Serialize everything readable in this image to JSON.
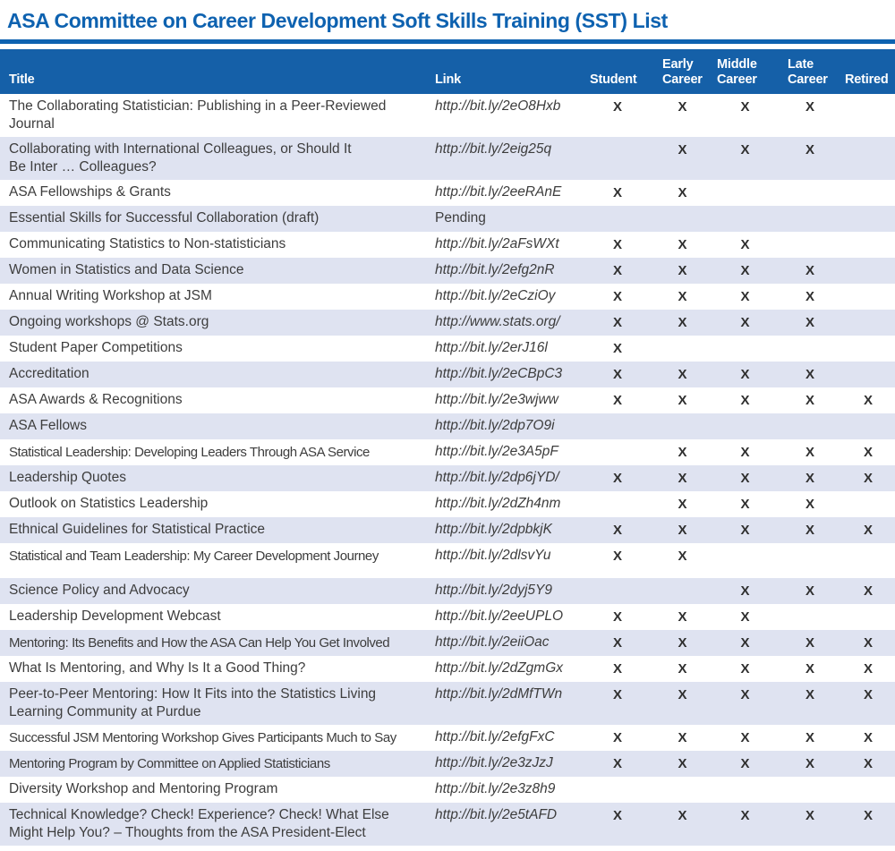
{
  "page_title": "ASA Committee on Career Development Soft Skills Training (SST) List",
  "mark_glyph": "X",
  "colors": {
    "accent_blue": "#0E62B0",
    "header_bar": "#1560A8",
    "header_text": "#FFFFFF",
    "stripe": "#DFE3F1",
    "text": "#3D3D3D"
  },
  "columns": {
    "title": "Title",
    "link": "Link",
    "student": "Student",
    "early_career": "Early Career",
    "middle_career": "Middle Career",
    "late_career": "Late Career",
    "retired": "Retired"
  },
  "rows": [
    {
      "title": "The Collaborating Statistician: Publishing in a Peer-Reviewed\nJournal",
      "link": "http://bit.ly/2eO8Hxb",
      "marks": {
        "student": "X",
        "early_career": "X",
        "middle_career": "X",
        "late_career": "X",
        "retired": ""
      }
    },
    {
      "title": "Collaborating with International Colleagues, or Should It\nBe Inter … Colleagues?",
      "link": "http://bit.ly/2eig25q",
      "marks": {
        "student": "",
        "early_career": "X",
        "middle_career": "X",
        "late_career": "X",
        "retired": ""
      }
    },
    {
      "title": "ASA Fellowships & Grants",
      "link": "http://bit.ly/2eeRAnE",
      "marks": {
        "student": "X",
        "early_career": "X",
        "middle_career": "",
        "late_career": "",
        "retired": ""
      }
    },
    {
      "title": "Essential Skills for Successful Collaboration (draft)",
      "link": "Pending",
      "marks": {
        "student": "",
        "early_career": "",
        "middle_career": "",
        "late_career": "",
        "retired": ""
      }
    },
    {
      "title": "Communicating Statistics to Non-statisticians",
      "link": "http://bit.ly/2aFsWXt",
      "marks": {
        "student": "X",
        "early_career": "X",
        "middle_career": "X",
        "late_career": "",
        "retired": ""
      }
    },
    {
      "title": "Women in Statistics and Data Science",
      "link": "http://bit.ly/2efg2nR",
      "marks": {
        "student": "X",
        "early_career": "X",
        "middle_career": "X",
        "late_career": "X",
        "retired": ""
      }
    },
    {
      "title": "Annual Writing Workshop at JSM",
      "link": "http://bit.ly/2eCziOy",
      "marks": {
        "student": "X",
        "early_career": "X",
        "middle_career": "X",
        "late_career": "X",
        "retired": ""
      }
    },
    {
      "title": "Ongoing workshops @ Stats.org",
      "link": "http://www.stats.org/",
      "marks": {
        "student": "X",
        "early_career": "X",
        "middle_career": "X",
        "late_career": "X",
        "retired": ""
      }
    },
    {
      "title": "Student Paper Competitions",
      "link": "http://bit.ly/2erJ16l",
      "marks": {
        "student": "X",
        "early_career": "",
        "middle_career": "",
        "late_career": "",
        "retired": ""
      }
    },
    {
      "title": "Accreditation",
      "link": "http://bit.ly/2eCBpC3",
      "marks": {
        "student": "X",
        "early_career": "X",
        "middle_career": "X",
        "late_career": "X",
        "retired": ""
      }
    },
    {
      "title": "ASA Awards & Recognitions",
      "link": "http://bit.ly/2e3wjww",
      "marks": {
        "student": "X",
        "early_career": "X",
        "middle_career": "X",
        "late_career": "X",
        "retired": "X"
      }
    },
    {
      "title": "ASA Fellows",
      "link": "http://bit.ly/2dp7O9i",
      "marks": {
        "student": "",
        "early_career": "",
        "middle_career": "",
        "late_career": "",
        "retired": ""
      }
    },
    {
      "title": "Statistical Leadership: Developing Leaders Through ASA Service",
      "link": "http://bit.ly/2e3A5pF",
      "marks": {
        "student": "",
        "early_career": "X",
        "middle_career": "X",
        "late_career": "X",
        "retired": "X"
      }
    },
    {
      "title": "Leadership Quotes",
      "link": "http://bit.ly/2dp6jYD/",
      "marks": {
        "student": "X",
        "early_career": "X",
        "middle_career": "X",
        "late_career": "X",
        "retired": "X"
      }
    },
    {
      "title": "Outlook on Statistics Leadership",
      "link": "http://bit.ly/2dZh4nm",
      "marks": {
        "student": "",
        "early_career": "X",
        "middle_career": "X",
        "late_career": "X",
        "retired": ""
      }
    },
    {
      "title": "Ethnical Guidelines for Statistical Practice",
      "link": "http://bit.ly/2dpbkjK",
      "marks": {
        "student": "X",
        "early_career": "X",
        "middle_career": "X",
        "late_career": "X",
        "retired": "X"
      }
    },
    {
      "title": "Statistical and Team Leadership: My Career Development Journey",
      "link": "http://bit.ly/2dlsvYu",
      "marks": {
        "student": "X",
        "early_career": "X",
        "middle_career": "",
        "late_career": "",
        "retired": ""
      }
    },
    {
      "title": "Science Policy and Advocacy",
      "link": "http://bit.ly/2dyj5Y9",
      "marks": {
        "student": "",
        "early_career": "",
        "middle_career": "X",
        "late_career": "X",
        "retired": "X"
      }
    },
    {
      "title": "Leadership Development Webcast",
      "link": "http://bit.ly/2eeUPLO",
      "marks": {
        "student": "X",
        "early_career": "X",
        "middle_career": "X",
        "late_career": "",
        "retired": ""
      }
    },
    {
      "title": "Mentoring: Its Benefits and How the ASA Can Help You Get Involved",
      "link": "http://bit.ly/2eiiOac",
      "marks": {
        "student": "X",
        "early_career": "X",
        "middle_career": "X",
        "late_career": "X",
        "retired": "X"
      }
    },
    {
      "title": "What Is Mentoring, and Why Is It a Good Thing?",
      "link": "http://bit.ly/2dZgmGx",
      "marks": {
        "student": "X",
        "early_career": "X",
        "middle_career": "X",
        "late_career": "X",
        "retired": "X"
      }
    },
    {
      "title": "Peer-to-Peer Mentoring: How It Fits into the Statistics Living\nLearning Community at Purdue",
      "link": "http://bit.ly/2dMfTWn",
      "marks": {
        "student": "X",
        "early_career": "X",
        "middle_career": "X",
        "late_career": "X",
        "retired": "X"
      }
    },
    {
      "title": "Successful JSM Mentoring Workshop Gives Participants Much to Say",
      "link": "http://bit.ly/2efgFxC",
      "marks": {
        "student": "X",
        "early_career": "X",
        "middle_career": "X",
        "late_career": "X",
        "retired": "X"
      }
    },
    {
      "title": "Mentoring Program by Committee on Applied Statisticians",
      "link": "http://bit.ly/2e3zJzJ",
      "marks": {
        "student": "X",
        "early_career": "X",
        "middle_career": "X",
        "late_career": "X",
        "retired": "X"
      }
    },
    {
      "title": "Diversity Workshop and Mentoring Program",
      "link": "http://bit.ly/2e3z8h9",
      "marks": {
        "student": "",
        "early_career": "",
        "middle_career": "",
        "late_career": "",
        "retired": ""
      }
    },
    {
      "title": "Technical Knowledge? Check! Experience? Check! What Else\nMight Help You? – Thoughts from the ASA President-Elect",
      "link": "http://bit.ly/2e5tAFD",
      "marks": {
        "student": "X",
        "early_career": "X",
        "middle_career": "X",
        "late_career": "X",
        "retired": "X"
      }
    }
  ]
}
